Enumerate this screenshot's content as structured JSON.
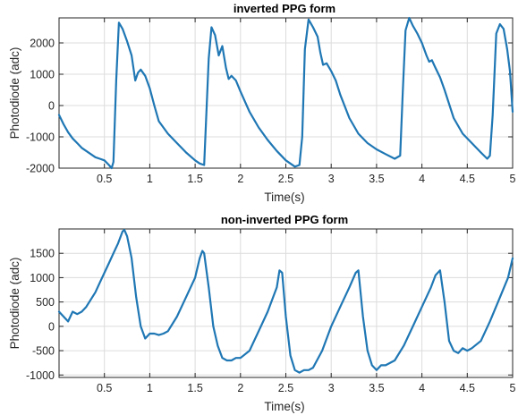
{
  "chart_data": [
    {
      "type": "line",
      "title": "inverted PPG form",
      "xlabel": "Time(s)",
      "ylabel": "Photodiode (adc)",
      "xlim": [
        0,
        5
      ],
      "ylim": [
        -2000,
        2800
      ],
      "xticks": [
        0.5,
        1,
        1.5,
        2,
        2.5,
        3,
        3.5,
        4,
        4.5,
        5
      ],
      "xtick_labels": [
        "0.5",
        "1",
        "1.5",
        "2",
        "2.5",
        "3",
        "3.5",
        "4",
        "4.5",
        "5"
      ],
      "yticks": [
        -2000,
        -1000,
        0,
        1000,
        2000
      ],
      "ytick_labels": [
        "-2000",
        "-1000",
        "0",
        "1000",
        "2000"
      ],
      "grid": true,
      "color": "#1f77b4",
      "series": [
        {
          "x": [
            0,
            0.05,
            0.1,
            0.15,
            0.2,
            0.25,
            0.3,
            0.35,
            0.4,
            0.45,
            0.5,
            0.55,
            0.58,
            0.6,
            0.63,
            0.66,
            0.7,
            0.75,
            0.8,
            0.84,
            0.87,
            0.9,
            0.95,
            1.0,
            1.05,
            1.1,
            1.2,
            1.3,
            1.4,
            1.5,
            1.55,
            1.6,
            1.62,
            1.65,
            1.68,
            1.72,
            1.76,
            1.8,
            1.84,
            1.87,
            1.9,
            1.95,
            2.0,
            2.1,
            2.2,
            2.3,
            2.4,
            2.5,
            2.6,
            2.65,
            2.68,
            2.71,
            2.75,
            2.8,
            2.85,
            2.88,
            2.91,
            2.95,
            3.0,
            3.05,
            3.1,
            3.2,
            3.3,
            3.4,
            3.5,
            3.6,
            3.7,
            3.76,
            3.79,
            3.82,
            3.86,
            3.9,
            3.95,
            4.0,
            4.05,
            4.08,
            4.11,
            4.15,
            4.2,
            4.25,
            4.35,
            4.45,
            4.55,
            4.65,
            4.72,
            4.75,
            4.78,
            4.82,
            4.86,
            4.9,
            4.94,
            4.97,
            5.0
          ],
          "y": [
            -300,
            -600,
            -850,
            -1050,
            -1200,
            -1350,
            -1450,
            -1550,
            -1650,
            -1700,
            -1750,
            -1900,
            -2000,
            -1800,
            800,
            2650,
            2450,
            2050,
            1600,
            800,
            1050,
            1150,
            950,
            550,
            0,
            -500,
            -900,
            -1200,
            -1500,
            -1750,
            -1850,
            -1900,
            -500,
            1500,
            2500,
            2250,
            1600,
            1900,
            1200,
            850,
            950,
            800,
            450,
            -200,
            -700,
            -1100,
            -1450,
            -1750,
            -1950,
            -1900,
            -1000,
            1800,
            2750,
            2500,
            2200,
            1700,
            1300,
            1350,
            1100,
            800,
            350,
            -400,
            -900,
            -1200,
            -1400,
            -1550,
            -1700,
            -1600,
            500,
            2400,
            2800,
            2550,
            2300,
            2000,
            1600,
            1400,
            1450,
            1200,
            900,
            500,
            -400,
            -900,
            -1200,
            -1500,
            -1700,
            -1600,
            -300,
            2300,
            2600,
            2450,
            1800,
            1100,
            -200
          ]
        }
      ]
    },
    {
      "type": "line",
      "title": "non-inverted PPG form",
      "xlabel": "Time(s)",
      "ylabel": "Photodiode (adc)",
      "xlim": [
        0,
        5
      ],
      "ylim": [
        -1050,
        2000
      ],
      "xticks": [
        0.5,
        1,
        1.5,
        2,
        2.5,
        3,
        3.5,
        4,
        4.5,
        5
      ],
      "xtick_labels": [
        "0.5",
        "1",
        "1.5",
        "2",
        "2.5",
        "3",
        "3.5",
        "4",
        "4.5",
        "5"
      ],
      "yticks": [
        -1000,
        -500,
        0,
        500,
        1000,
        1500
      ],
      "ytick_labels": [
        "-1000",
        "-500",
        "0",
        "500",
        "1000",
        "1500"
      ],
      "grid": true,
      "color": "#1f77b4",
      "series": [
        {
          "x": [
            0,
            0.05,
            0.1,
            0.15,
            0.2,
            0.25,
            0.3,
            0.35,
            0.4,
            0.45,
            0.5,
            0.55,
            0.6,
            0.65,
            0.7,
            0.72,
            0.75,
            0.8,
            0.85,
            0.9,
            0.95,
            1.0,
            1.05,
            1.1,
            1.15,
            1.2,
            1.3,
            1.4,
            1.5,
            1.55,
            1.58,
            1.6,
            1.65,
            1.7,
            1.75,
            1.8,
            1.85,
            1.9,
            1.95,
            2.0,
            2.1,
            2.2,
            2.3,
            2.4,
            2.43,
            2.46,
            2.5,
            2.55,
            2.6,
            2.65,
            2.7,
            2.75,
            2.8,
            2.9,
            3.0,
            3.1,
            3.2,
            3.27,
            3.3,
            3.35,
            3.4,
            3.45,
            3.5,
            3.55,
            3.6,
            3.7,
            3.8,
            3.9,
            4.0,
            4.1,
            4.15,
            4.2,
            4.25,
            4.3,
            4.35,
            4.4,
            4.45,
            4.5,
            4.55,
            4.65,
            4.75,
            4.85,
            4.95,
            5.0
          ],
          "y": [
            300,
            200,
            100,
            300,
            250,
            300,
            400,
            550,
            700,
            900,
            1100,
            1300,
            1500,
            1700,
            1950,
            1980,
            1850,
            1400,
            600,
            0,
            -250,
            -150,
            -150,
            -180,
            -150,
            -100,
            200,
            600,
            1000,
            1400,
            1550,
            1500,
            800,
            0,
            -400,
            -650,
            -700,
            -700,
            -650,
            -650,
            -500,
            -100,
            300,
            800,
            1150,
            1100,
            200,
            -600,
            -900,
            -950,
            -900,
            -900,
            -850,
            -500,
            0,
            400,
            800,
            1100,
            1150,
            200,
            -500,
            -800,
            -900,
            -800,
            -800,
            -700,
            -400,
            0,
            400,
            800,
            1050,
            1150,
            500,
            -300,
            -500,
            -550,
            -450,
            -500,
            -450,
            -300,
            100,
            550,
            1000,
            1400
          ]
        }
      ]
    }
  ]
}
